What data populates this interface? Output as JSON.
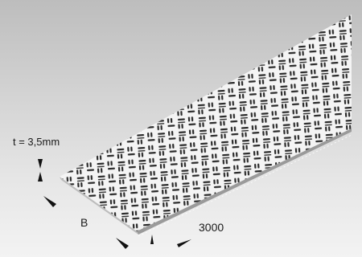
{
  "diagram": {
    "thickness_label": "t = 3,5mm",
    "width_label": "B",
    "length_label": "3000",
    "colors": {
      "background_top": "#bdbdbd",
      "background_bottom": "#f3f3f3",
      "plate": "#f4f4f4",
      "pattern": "#2b2b2b",
      "arrows": "#111111"
    }
  }
}
